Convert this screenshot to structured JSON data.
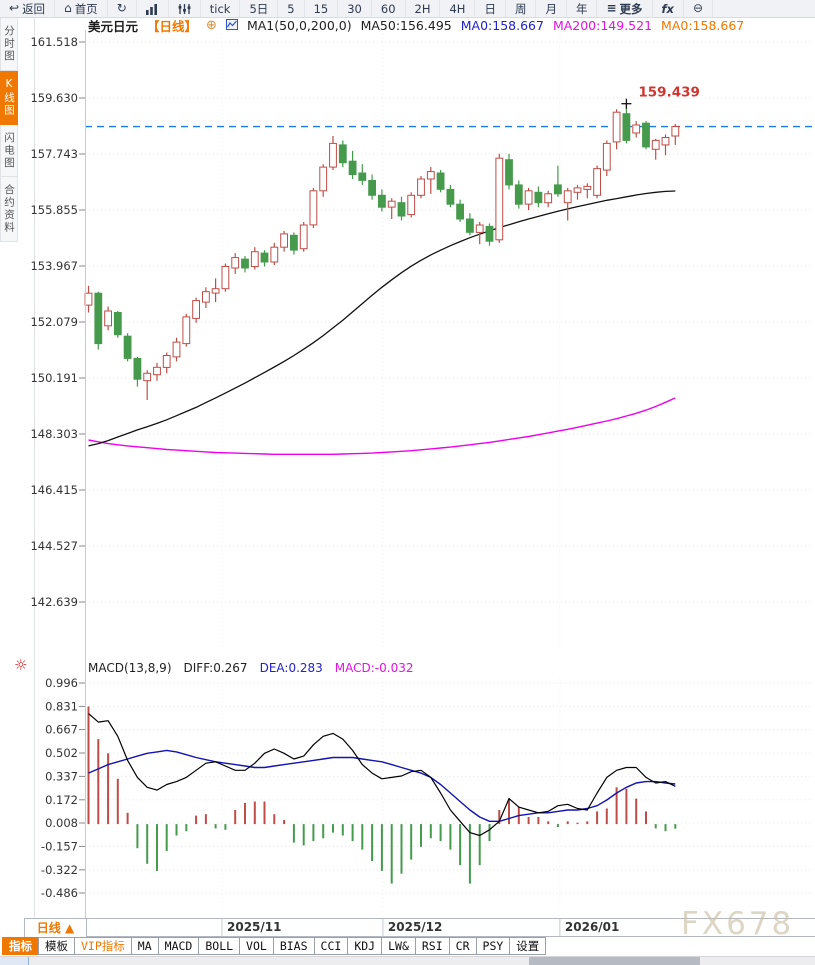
{
  "toolbar": {
    "items": [
      {
        "name": "back-button",
        "icon": "↩",
        "label": "返回"
      },
      {
        "name": "home-button",
        "icon": "⌂",
        "label": "首页"
      },
      {
        "name": "refresh-button",
        "icon": "↻",
        "label": ""
      },
      {
        "name": "chart-type-button",
        "svg": "bars",
        "label": ""
      },
      {
        "name": "volume-profile-button",
        "svg": "sliders",
        "label": ""
      },
      {
        "name": "tick-period-button",
        "label": "tick"
      },
      {
        "name": "period-5day-button",
        "label": "5日"
      },
      {
        "name": "period-5-button",
        "label": "5"
      },
      {
        "name": "period-15-button",
        "label": "15"
      },
      {
        "name": "period-30-button",
        "label": "30"
      },
      {
        "name": "period-60-button",
        "label": "60"
      },
      {
        "name": "period-2h-button",
        "label": "2H"
      },
      {
        "name": "period-4h-button",
        "label": "4H"
      },
      {
        "name": "period-day-button",
        "label": "日"
      },
      {
        "name": "period-week-button",
        "label": "周"
      },
      {
        "name": "period-month-button",
        "label": "月"
      },
      {
        "name": "period-year-button",
        "label": "年"
      },
      {
        "name": "more-button",
        "icon": "≡",
        "label": "更多",
        "cls": "bold"
      },
      {
        "name": "fx-tools-button",
        "label": "fx",
        "cls": "italic"
      },
      {
        "name": "zoom-out-button",
        "icon": "⊖",
        "label": ""
      }
    ]
  },
  "sidebar": {
    "tabs": [
      {
        "name": "tab-time-chart",
        "label": "分时图",
        "active": false
      },
      {
        "name": "tab-kline-chart",
        "label": "K线图",
        "active": true
      },
      {
        "name": "tab-lightning-chart",
        "label": "闪电图",
        "active": false
      },
      {
        "name": "tab-contract-info",
        "label": "合约资料",
        "active": false
      }
    ]
  },
  "chart_header": {
    "symbol": "美元日元",
    "period": "【日线】",
    "plus_icon": "⊕",
    "ma_settings": "MA1(50,0,200,0)",
    "ma50_label": "MA50:156.495",
    "ma0_blue": "MA0:158.667",
    "ma200_label": "MA200:149.521",
    "ma0_orange": "MA0:158.667"
  },
  "macd_header": {
    "icon": "☼",
    "title": "MACD(13,8,9)",
    "diff": "DIFF:0.267",
    "dea": "DEA:0.283",
    "macd": "MACD:-0.032"
  },
  "bottom": {
    "period_selector": "日线 ▲",
    "buttons": [
      {
        "name": "indicator-button",
        "label": "指标",
        "style": "active"
      },
      {
        "name": "template-button",
        "label": "模板",
        "style": ""
      },
      {
        "name": "vip-indicator-button",
        "label": "VIP指标",
        "style": "vip"
      },
      {
        "name": "ind-ma-button",
        "label": "MA",
        "style": ""
      },
      {
        "name": "ind-macd-button",
        "label": "MACD",
        "style": ""
      },
      {
        "name": "ind-boll-button",
        "label": "BOLL",
        "style": ""
      },
      {
        "name": "ind-vol-button",
        "label": "VOL",
        "style": ""
      },
      {
        "name": "ind-bias-button",
        "label": "BIAS",
        "style": ""
      },
      {
        "name": "ind-cci-button",
        "label": "CCI",
        "style": ""
      },
      {
        "name": "ind-kdj-button",
        "label": "KDJ",
        "style": ""
      },
      {
        "name": "ind-lwr-button",
        "label": "LW&",
        "style": ""
      },
      {
        "name": "ind-rsi-button",
        "label": "RSI",
        "style": ""
      },
      {
        "name": "ind-cr-button",
        "label": "CR",
        "style": ""
      },
      {
        "name": "ind-psy-button",
        "label": "PSY",
        "style": ""
      },
      {
        "name": "settings-button",
        "label": "设置",
        "style": ""
      }
    ]
  },
  "watermark": "FX678",
  "colors": {
    "accent_orange": "#f07800",
    "candle_up": "#bf4d47",
    "candle_down": "#459a4c",
    "ma50": "#111111",
    "ma200": "#ee00ee",
    "dea_blue": "#1313b0",
    "diff_black": "#000000",
    "dashed_price_line": "#1c79e8",
    "annotation_red": "#ce3731",
    "axis_text": "#333333"
  },
  "chart_data": [
    {
      "type": "candlestick",
      "title": "USD/JPY daily (美元日元 日线)",
      "y_ticks": [
        161.518,
        159.63,
        157.743,
        155.855,
        153.967,
        152.079,
        150.191,
        148.303,
        146.415,
        144.527,
        142.639
      ],
      "current_price_line": 158.667,
      "high_annotation": {
        "label": "159.439",
        "value": 159.439,
        "candle_index": 55
      },
      "x_axis": {
        "labels": [
          "2025/11",
          "2025/12",
          "2026/01"
        ],
        "boundaries": [
          13.65,
          30.1,
          48.2
        ]
      },
      "candles": [
        [
          152.65,
          153.3,
          152.4,
          153.05
        ],
        [
          153.05,
          153.1,
          151.15,
          151.35
        ],
        [
          151.95,
          152.6,
          151.8,
          152.45
        ],
        [
          152.4,
          152.45,
          151.55,
          151.65
        ],
        [
          151.6,
          151.7,
          150.75,
          150.85
        ],
        [
          150.85,
          150.9,
          149.9,
          150.15
        ],
        [
          150.1,
          150.45,
          149.45,
          150.35
        ],
        [
          150.3,
          150.7,
          150.1,
          150.55
        ],
        [
          150.55,
          151.05,
          150.35,
          150.95
        ],
        [
          150.9,
          151.55,
          150.75,
          151.4
        ],
        [
          151.35,
          152.35,
          151.25,
          152.25
        ],
        [
          152.2,
          152.9,
          152.05,
          152.8
        ],
        [
          152.75,
          153.25,
          152.55,
          153.1
        ],
        [
          153.05,
          153.55,
          152.75,
          153.2
        ],
        [
          153.2,
          154.05,
          153.1,
          153.95
        ],
        [
          153.9,
          154.4,
          153.7,
          154.25
        ],
        [
          154.2,
          154.3,
          153.75,
          153.9
        ],
        [
          153.95,
          154.6,
          153.85,
          154.45
        ],
        [
          154.4,
          154.5,
          153.95,
          154.1
        ],
        [
          154.1,
          154.75,
          154.0,
          154.6
        ],
        [
          154.6,
          155.15,
          154.45,
          155.05
        ],
        [
          155.0,
          155.1,
          154.35,
          154.5
        ],
        [
          154.55,
          155.45,
          154.45,
          155.35
        ],
        [
          155.35,
          156.6,
          155.25,
          156.5
        ],
        [
          156.5,
          157.4,
          156.3,
          157.3
        ],
        [
          157.3,
          158.35,
          157.2,
          158.1
        ],
        [
          158.05,
          158.2,
          157.3,
          157.45
        ],
        [
          157.5,
          157.85,
          156.9,
          157.05
        ],
        [
          157.1,
          157.4,
          156.7,
          156.85
        ],
        [
          156.85,
          157.05,
          156.2,
          156.35
        ],
        [
          156.35,
          156.55,
          155.8,
          155.95
        ],
        [
          155.95,
          156.25,
          155.55,
          156.15
        ],
        [
          156.1,
          156.3,
          155.5,
          155.65
        ],
        [
          155.7,
          156.45,
          155.6,
          156.35
        ],
        [
          156.35,
          157.0,
          156.25,
          156.9
        ],
        [
          156.9,
          157.3,
          156.4,
          157.15
        ],
        [
          157.1,
          157.2,
          156.45,
          156.55
        ],
        [
          156.55,
          156.7,
          155.95,
          156.05
        ],
        [
          156.05,
          156.2,
          155.45,
          155.55
        ],
        [
          155.55,
          155.75,
          155.0,
          155.1
        ],
        [
          155.1,
          155.45,
          154.7,
          155.35
        ],
        [
          155.3,
          155.4,
          154.65,
          154.8
        ],
        [
          154.85,
          157.75,
          154.75,
          157.6
        ],
        [
          157.55,
          157.75,
          156.55,
          156.7
        ],
        [
          156.7,
          156.85,
          155.9,
          156.05
        ],
        [
          156.05,
          156.6,
          155.85,
          156.5
        ],
        [
          156.45,
          156.65,
          155.95,
          156.1
        ],
        [
          156.1,
          156.5,
          155.95,
          156.4
        ],
        [
          156.7,
          157.35,
          156.3,
          156.4
        ],
        [
          156.1,
          156.6,
          155.5,
          156.5
        ],
        [
          156.45,
          156.7,
          156.2,
          156.6
        ],
        [
          156.55,
          156.75,
          156.25,
          156.65
        ],
        [
          156.35,
          157.35,
          156.25,
          157.25
        ],
        [
          157.2,
          158.2,
          157.0,
          158.1
        ],
        [
          158.15,
          159.25,
          157.9,
          159.15
        ],
        [
          159.1,
          159.439,
          158.1,
          158.2
        ],
        [
          158.45,
          158.85,
          158.3,
          158.72
        ],
        [
          158.78,
          158.85,
          157.9,
          157.98
        ],
        [
          157.9,
          158.25,
          157.55,
          158.2
        ],
        [
          158.05,
          158.4,
          157.7,
          158.3
        ],
        [
          158.35,
          158.75,
          158.05,
          158.667
        ]
      ],
      "ma50": [
        147.9,
        147.98,
        148.08,
        148.2,
        148.32,
        148.44,
        148.55,
        148.66,
        148.78,
        148.92,
        149.06,
        149.2,
        149.36,
        149.52,
        149.68,
        149.85,
        150.02,
        150.2,
        150.38,
        150.56,
        150.75,
        150.95,
        151.16,
        151.38,
        151.62,
        151.88,
        152.14,
        152.42,
        152.7,
        152.98,
        153.25,
        153.5,
        153.74,
        153.96,
        154.16,
        154.34,
        154.5,
        154.65,
        154.79,
        154.92,
        155.04,
        155.15,
        155.26,
        155.36,
        155.46,
        155.55,
        155.64,
        155.73,
        155.81,
        155.89,
        155.97,
        156.04,
        156.11,
        156.18,
        156.24,
        156.3,
        156.36,
        156.41,
        156.45,
        156.48,
        156.495
      ],
      "ma200": [
        148.1,
        148.04,
        147.98,
        147.94,
        147.9,
        147.87,
        147.84,
        147.81,
        147.78,
        147.76,
        147.74,
        147.72,
        147.7,
        147.68,
        147.67,
        147.66,
        147.65,
        147.64,
        147.63,
        147.62,
        147.62,
        147.62,
        147.62,
        147.62,
        147.62,
        147.62,
        147.63,
        147.64,
        147.65,
        147.66,
        147.68,
        147.7,
        147.72,
        147.74,
        147.77,
        147.8,
        147.83,
        147.86,
        147.9,
        147.94,
        147.98,
        148.02,
        148.07,
        148.12,
        148.17,
        148.22,
        148.28,
        148.34,
        148.4,
        148.46,
        148.53,
        148.6,
        148.67,
        148.74,
        148.82,
        148.91,
        149.0,
        149.11,
        149.23,
        149.37,
        149.521
      ]
    },
    {
      "type": "macd",
      "params": "(13,8,9)",
      "y_ticks": [
        0.996,
        0.831,
        0.667,
        0.502,
        0.337,
        0.172,
        0.008,
        -0.157,
        -0.322,
        -0.486
      ],
      "histogram": [
        0.83,
        0.6,
        0.5,
        0.32,
        0.08,
        -0.17,
        -0.28,
        -0.33,
        -0.19,
        -0.08,
        -0.05,
        0.06,
        0.07,
        -0.03,
        -0.04,
        0.1,
        0.15,
        0.16,
        0.16,
        0.07,
        0.03,
        -0.13,
        -0.15,
        -0.12,
        -0.1,
        -0.06,
        -0.08,
        -0.12,
        -0.18,
        -0.26,
        -0.33,
        -0.42,
        -0.35,
        -0.25,
        -0.16,
        -0.1,
        -0.12,
        -0.18,
        -0.29,
        -0.42,
        -0.29,
        -0.12,
        0.1,
        0.18,
        0.12,
        0.05,
        0.05,
        0.02,
        -0.02,
        0.02,
        0.01,
        0.02,
        0.09,
        0.11,
        0.26,
        0.25,
        0.18,
        0.09,
        -0.03,
        -0.05,
        -0.032
      ],
      "diff": [
        0.78,
        0.72,
        0.73,
        0.62,
        0.45,
        0.33,
        0.26,
        0.24,
        0.28,
        0.3,
        0.33,
        0.38,
        0.43,
        0.44,
        0.41,
        0.38,
        0.38,
        0.43,
        0.5,
        0.53,
        0.5,
        0.46,
        0.48,
        0.56,
        0.62,
        0.64,
        0.6,
        0.52,
        0.42,
        0.36,
        0.32,
        0.33,
        0.34,
        0.37,
        0.38,
        0.33,
        0.22,
        0.1,
        0.02,
        -0.06,
        -0.08,
        -0.04,
        0.02,
        0.18,
        0.12,
        0.1,
        0.08,
        0.09,
        0.13,
        0.14,
        0.11,
        0.1,
        0.22,
        0.33,
        0.38,
        0.4,
        0.4,
        0.33,
        0.29,
        0.3,
        0.267
      ],
      "dea": [
        0.36,
        0.39,
        0.42,
        0.44,
        0.46,
        0.48,
        0.5,
        0.51,
        0.52,
        0.51,
        0.49,
        0.47,
        0.455,
        0.44,
        0.43,
        0.42,
        0.41,
        0.4,
        0.4,
        0.41,
        0.42,
        0.43,
        0.44,
        0.45,
        0.46,
        0.47,
        0.47,
        0.47,
        0.46,
        0.45,
        0.44,
        0.42,
        0.4,
        0.38,
        0.36,
        0.33,
        0.28,
        0.22,
        0.16,
        0.1,
        0.05,
        0.02,
        0.02,
        0.04,
        0.06,
        0.07,
        0.08,
        0.08,
        0.09,
        0.1,
        0.1,
        0.11,
        0.13,
        0.17,
        0.22,
        0.26,
        0.29,
        0.3,
        0.3,
        0.29,
        0.283
      ]
    }
  ]
}
